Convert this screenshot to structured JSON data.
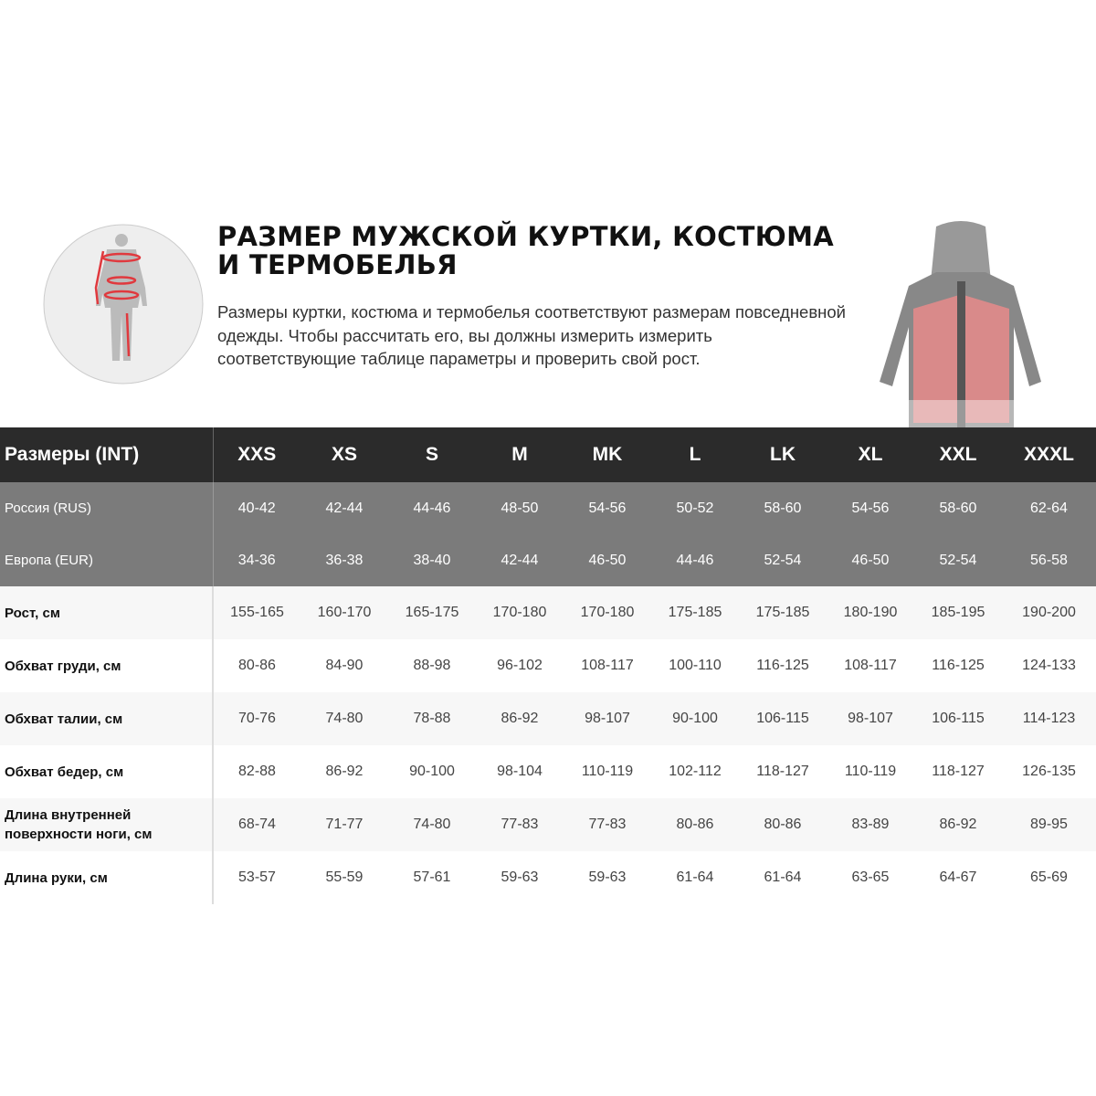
{
  "header": {
    "title": "РАЗМЕР МУЖСКОЙ КУРТКИ, КОСТЮМА И ТЕРМОБЕЛЬЯ",
    "description": "Размеры куртки, костюма и термобелья соответствуют размерам повседневной одежды. Чтобы рассчитать его, вы должны измерить измерить соответствующие таблице параметры и проверить свой рост."
  },
  "colors": {
    "header_bg": "#2b2b2b",
    "equiv_bg": "#7b7b7b",
    "accent": "#e0393e"
  },
  "table": {
    "corner": "Размеры (INT)",
    "sizes": [
      "XXS",
      "XS",
      "S",
      "M",
      "MK",
      "L",
      "LK",
      "XL",
      "XXL",
      "XXXL"
    ],
    "equivalents": [
      {
        "label": "Россия (RUS)",
        "values": [
          "40-42",
          "42-44",
          "44-46",
          "48-50",
          "54-56",
          "50-52",
          "58-60",
          "54-56",
          "58-60",
          "62-64"
        ]
      },
      {
        "label": "Европа (EUR)",
        "values": [
          "34-36",
          "36-38",
          "38-40",
          "42-44",
          "46-50",
          "44-46",
          "52-54",
          "46-50",
          "52-54",
          "56-58"
        ]
      }
    ],
    "measurements": [
      {
        "label": "Рост, см",
        "values": [
          "155-165",
          "160-170",
          "165-175",
          "170-180",
          "170-180",
          "175-185",
          "175-185",
          "180-190",
          "185-195",
          "190-200"
        ]
      },
      {
        "label": "Обхват груди, см",
        "values": [
          "80-86",
          "84-90",
          "88-98",
          "96-102",
          "108-117",
          "100-110",
          "116-125",
          "108-117",
          "116-125",
          "124-133"
        ]
      },
      {
        "label": "Обхват талии, см",
        "values": [
          "70-76",
          "74-80",
          "78-88",
          "86-92",
          "98-107",
          "90-100",
          "106-115",
          "98-107",
          "106-115",
          "114-123"
        ]
      },
      {
        "label": "Обхват бедер, см",
        "values": [
          "82-88",
          "86-92",
          "90-100",
          "98-104",
          "110-119",
          "102-112",
          "118-127",
          "110-119",
          "118-127",
          "126-135"
        ]
      },
      {
        "label": "Длина внутренней поверхности ноги, см",
        "values": [
          "68-74",
          "71-77",
          "74-80",
          "77-83",
          "77-83",
          "80-86",
          "80-86",
          "83-89",
          "86-92",
          "89-95"
        ]
      },
      {
        "label": "Длина руки, см",
        "values": [
          "53-57",
          "55-59",
          "57-61",
          "59-63",
          "59-63",
          "61-64",
          "61-64",
          "63-65",
          "64-67",
          "65-69"
        ]
      }
    ]
  }
}
